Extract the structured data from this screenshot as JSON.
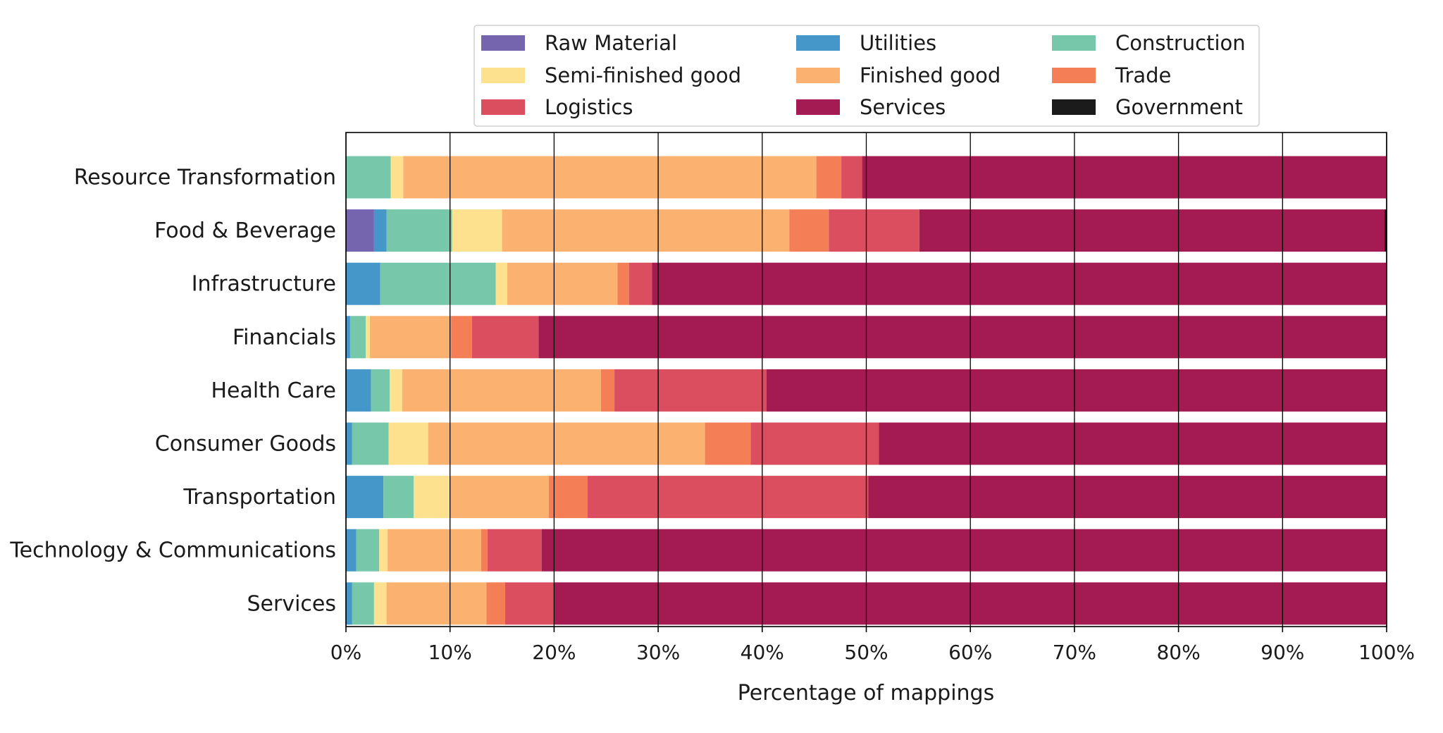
{
  "chart_data": {
    "type": "bar",
    "orientation": "horizontal",
    "stacked": true,
    "title": "",
    "xlabel": "Percentage of mappings",
    "ylabel": "",
    "xlim": [
      0,
      100
    ],
    "x_ticks": [
      0,
      10,
      20,
      30,
      40,
      50,
      60,
      70,
      80,
      90,
      100
    ],
    "x_tick_labels": [
      "0%",
      "10%",
      "20%",
      "30%",
      "40%",
      "50%",
      "60%",
      "70%",
      "80%",
      "90%",
      "100%"
    ],
    "grid": true,
    "legend_position": "top-center",
    "categories": [
      "Resource Transformation",
      "Food & Beverage",
      "Infrastructure",
      "Financials",
      "Health Care",
      "Consumer Goods",
      "Transportation",
      "Technology & Communications",
      "Services"
    ],
    "series": [
      {
        "name": "Raw Material",
        "color": "#7465ae",
        "values": [
          0.0,
          2.7,
          0.0,
          0.0,
          0.0,
          0.0,
          0.0,
          0.0,
          0.0
        ]
      },
      {
        "name": "Utilities",
        "color": "#4597c9",
        "values": [
          0.0,
          1.2,
          3.3,
          0.4,
          2.4,
          0.6,
          3.6,
          1.0,
          0.6
        ]
      },
      {
        "name": "Construction",
        "color": "#77c8ab",
        "values": [
          4.3,
          6.3,
          11.1,
          1.5,
          1.8,
          3.5,
          2.9,
          2.2,
          2.1
        ]
      },
      {
        "name": "Semi-finished good",
        "color": "#fee18f",
        "values": [
          1.2,
          4.8,
          1.1,
          0.4,
          1.2,
          3.8,
          3.5,
          0.8,
          1.2
        ]
      },
      {
        "name": "Finished good",
        "color": "#fbb271",
        "values": [
          39.7,
          27.6,
          10.6,
          7.8,
          19.1,
          26.6,
          9.5,
          9.0,
          9.6
        ]
      },
      {
        "name": "Trade",
        "color": "#f47f56",
        "values": [
          2.4,
          3.8,
          1.1,
          2.0,
          1.3,
          4.4,
          3.7,
          0.6,
          1.8
        ]
      },
      {
        "name": "Logistics",
        "color": "#da4e5f",
        "values": [
          2.0,
          8.7,
          2.2,
          6.4,
          14.6,
          12.3,
          27.0,
          5.2,
          4.7
        ]
      },
      {
        "name": "Services",
        "color": "#a41b51",
        "values": [
          50.4,
          44.7,
          70.6,
          81.5,
          59.6,
          48.8,
          49.8,
          81.2,
          80.0
        ]
      },
      {
        "name": "Government",
        "color": "#1b1b1b",
        "values": [
          0.0,
          0.2,
          0.0,
          0.0,
          0.0,
          0.0,
          0.0,
          0.0,
          0.0
        ]
      }
    ],
    "legend_order": [
      "Raw Material",
      "Utilities",
      "Construction",
      "Semi-finished good",
      "Finished good",
      "Trade",
      "Logistics",
      "Services",
      "Government"
    ]
  }
}
